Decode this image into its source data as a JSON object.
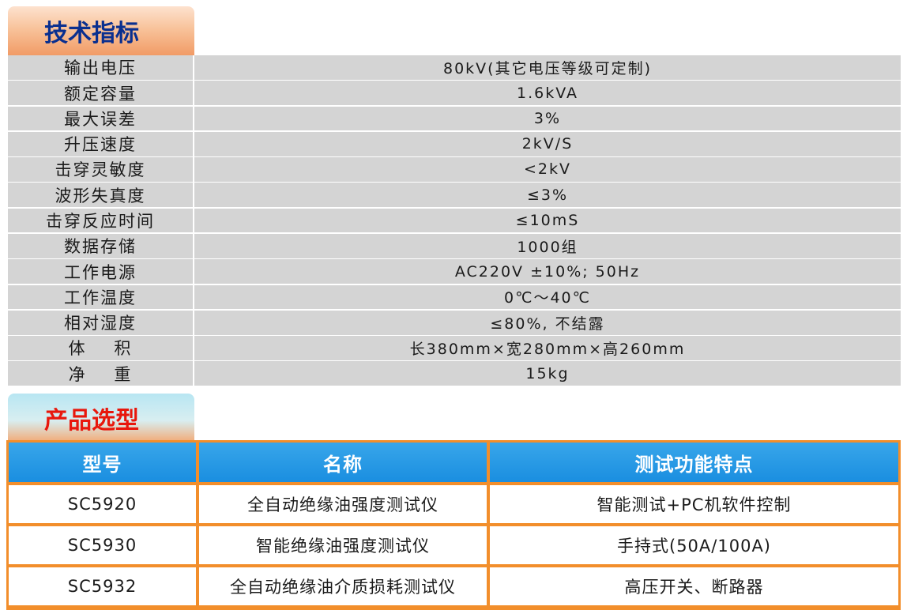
{
  "sections": {
    "specs_title": "技术指标",
    "models_title": "产品选型"
  },
  "specs": [
    {
      "label": "输出电压",
      "value": "80kV(其它电压等级可定制)"
    },
    {
      "label": "额定容量",
      "value": "1.6kVA"
    },
    {
      "label": "最大误差",
      "value": "3%"
    },
    {
      "label": "升压速度",
      "value": "2kV/S"
    },
    {
      "label": "击穿灵敏度",
      "value": "<2kV"
    },
    {
      "label": "波形失真度",
      "value": "≤3%"
    },
    {
      "label": "击穿反应时间",
      "value": "≤10mS"
    },
    {
      "label": "数据存储",
      "value": "1000组"
    },
    {
      "label": "工作电源",
      "value": "AC220V ±10%; 50Hz"
    },
    {
      "label": "工作温度",
      "value": "0℃～40℃"
    },
    {
      "label": "相对湿度",
      "value": "≤80%, 不结露"
    },
    {
      "label": "体    积",
      "value": "长380mm×宽280mm×高260mm"
    },
    {
      "label": "净    重",
      "value": "15kg"
    }
  ],
  "models": {
    "headers": [
      "型号",
      "名称",
      "测试功能特点"
    ],
    "rows": [
      [
        "SC5920",
        "全自动绝缘油强度测试仪",
        "智能测试+PC机软件控制"
      ],
      [
        "SC5930",
        "智能绝缘油强度测试仪",
        "手持式(50A/100A)"
      ],
      [
        "SC5932",
        "全自动绝缘油介质损耗测试仪",
        "高压开关、断路器"
      ]
    ]
  }
}
